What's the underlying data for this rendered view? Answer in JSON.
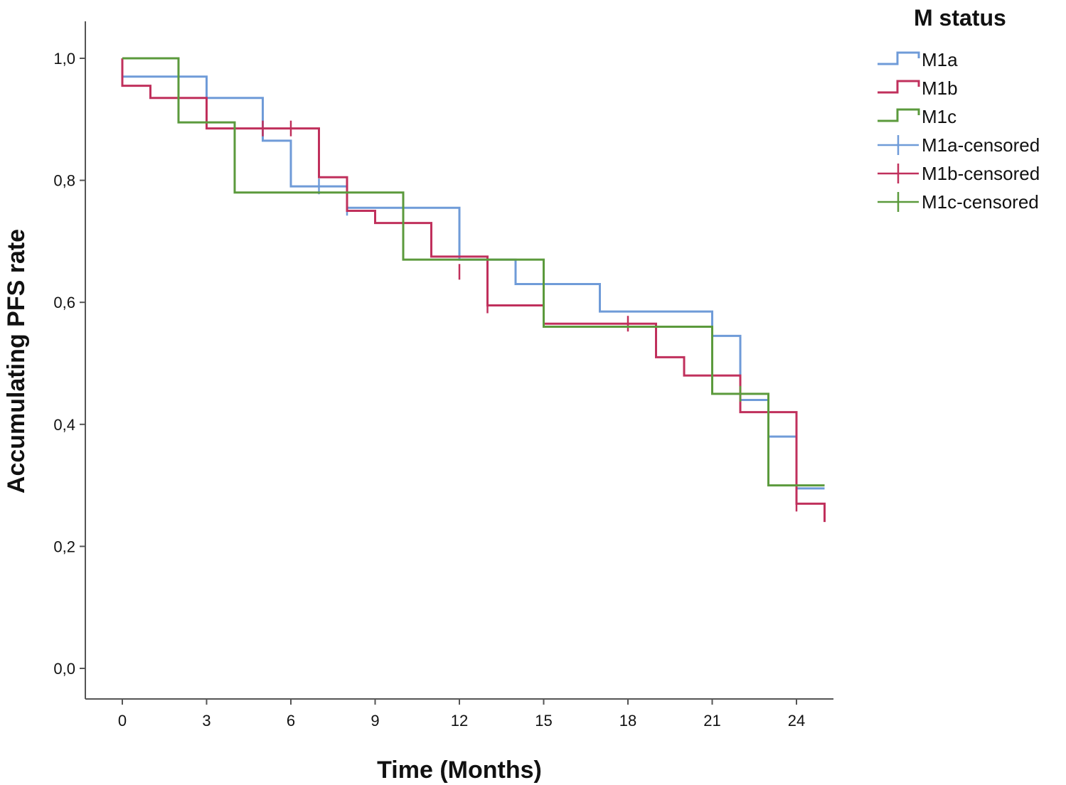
{
  "chart_data": {
    "type": "line",
    "step": true,
    "xlabel": "Time (Months)",
    "ylabel": "Accumulating PFS rate",
    "xlim": [
      -1.3,
      25.3
    ],
    "ylim": [
      0.0,
      1.0
    ],
    "x_ticks": [
      "0",
      "3",
      "6",
      "9",
      "12",
      "15",
      "18",
      "21",
      "24"
    ],
    "x_tick_values": [
      0,
      3,
      6,
      9,
      12,
      15,
      18,
      21,
      24
    ],
    "y_ticks": [
      "0,0",
      "0,2",
      "0,4",
      "0,6",
      "0,8",
      "1,0"
    ],
    "y_tick_values": [
      0,
      0.2,
      0.4,
      0.6,
      0.8,
      1.0
    ],
    "grid": false,
    "legend_title": "M status",
    "legend_position": "top-right",
    "legend": [
      {
        "label": "M1a",
        "kind": "line",
        "color": "#6f9bd8"
      },
      {
        "label": "M1b",
        "kind": "line",
        "color": "#c0305c"
      },
      {
        "label": "M1c",
        "kind": "line",
        "color": "#5b9a3c"
      },
      {
        "label": "M1a-censored",
        "kind": "censor",
        "color": "#6f9bd8"
      },
      {
        "label": "M1b-censored",
        "kind": "censor",
        "color": "#c0305c"
      },
      {
        "label": "M1c-censored",
        "kind": "censor",
        "color": "#5b9a3c"
      }
    ],
    "series": [
      {
        "name": "M1a",
        "color": "#6f9bd8",
        "x": [
          0,
          3,
          5,
          6,
          8,
          12,
          14,
          17,
          21,
          22,
          23,
          24,
          25
        ],
        "y": [
          0.97,
          0.935,
          0.865,
          0.79,
          0.755,
          0.67,
          0.63,
          0.585,
          0.545,
          0.44,
          0.38,
          0.295,
          0.295
        ],
        "censored": [
          [
            3,
            0.935
          ],
          [
            7,
            0.79
          ],
          [
            8,
            0.755
          ],
          [
            24,
            0.295
          ]
        ]
      },
      {
        "name": "M1b",
        "color": "#c0305c",
        "x": [
          0,
          1,
          3,
          7,
          8,
          9,
          11,
          13,
          15,
          19,
          20,
          22,
          24,
          25
        ],
        "y": [
          0.955,
          0.935,
          0.885,
          0.805,
          0.75,
          0.73,
          0.675,
          0.595,
          0.565,
          0.51,
          0.48,
          0.42,
          0.27,
          0.24
        ],
        "censored": [
          [
            5,
            0.885
          ],
          [
            6,
            0.885
          ],
          [
            12,
            0.65
          ],
          [
            13,
            0.595
          ],
          [
            18,
            0.565
          ],
          [
            24,
            0.27
          ]
        ]
      },
      {
        "name": "M1c",
        "color": "#5b9a3c",
        "x": [
          0,
          2,
          4,
          10,
          15,
          21,
          23,
          25
        ],
        "y": [
          1.0,
          0.895,
          0.78,
          0.67,
          0.56,
          0.45,
          0.3,
          0.3
        ],
        "censored": [
          [
            22,
            0.45
          ]
        ]
      }
    ]
  }
}
